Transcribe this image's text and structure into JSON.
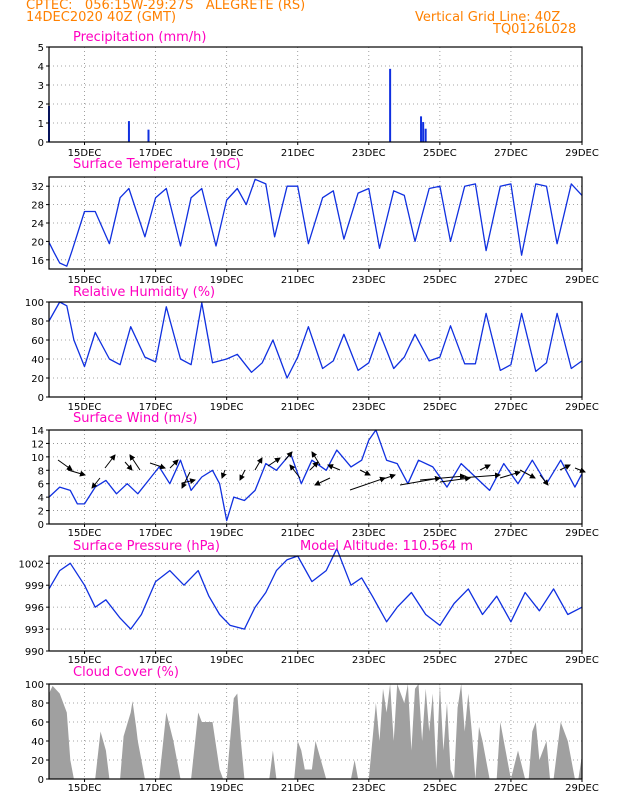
{
  "header": {
    "line1_left": "CPTEC:   056:15W-29:27S   ALEGRETE (RS)",
    "line2_left": "14DEC2020 40Z (GMT)",
    "line2_right": "Vertical Grid Line: 40Z",
    "line3_right": "TQ0126L028"
  },
  "colors": {
    "header": "#ff8000",
    "title": "#ff00c0",
    "series": "#1030e0",
    "cloud": "#a0a0a0",
    "arrow": "#000000"
  },
  "x_ticks": [
    "15DEC",
    "17DEC",
    "19DEC",
    "21DEC",
    "23DEC",
    "25DEC",
    "27DEC",
    "29DEC"
  ],
  "chart_data": [
    {
      "id": "precip",
      "type": "bar",
      "title": "Precipitation (mm/h)",
      "ylim": [
        0,
        5
      ],
      "yticks": [
        0,
        1,
        2,
        3,
        4,
        5
      ],
      "x": [
        14.0,
        16.25,
        16.8,
        23.6,
        24.47,
        24.53,
        24.6
      ],
      "values": [
        1.9,
        1.1,
        0.65,
        3.85,
        1.35,
        1.05,
        0.7
      ]
    },
    {
      "id": "temp",
      "type": "line",
      "title": "Surface Temperature (nC)",
      "ylim": [
        14,
        34
      ],
      "yticks": [
        16,
        20,
        24,
        28,
        32
      ],
      "x": [
        14.0,
        14.15,
        14.3,
        14.5,
        14.65,
        15.0,
        15.3,
        15.7,
        16.0,
        16.25,
        16.7,
        17.0,
        17.3,
        17.7,
        18.0,
        18.3,
        18.7,
        19.0,
        19.3,
        19.55,
        19.8,
        20.1,
        20.35,
        20.7,
        21.0,
        21.3,
        21.7,
        22.0,
        22.3,
        22.7,
        23.0,
        23.3,
        23.7,
        24.0,
        24.3,
        24.7,
        25.0,
        25.3,
        25.7,
        26.0,
        26.3,
        26.7,
        27.0,
        27.3,
        27.7,
        28.0,
        28.3,
        28.7,
        29.0
      ],
      "values": [
        19.8,
        17.5,
        15.3,
        14.6,
        18.0,
        26.5,
        26.5,
        19.5,
        29.5,
        31.5,
        21.0,
        29.5,
        31.5,
        19.0,
        29.5,
        31.5,
        19.0,
        29.0,
        31.5,
        28.0,
        33.5,
        32.5,
        21.0,
        32.0,
        32.0,
        19.5,
        29.5,
        31.0,
        20.5,
        30.5,
        31.5,
        18.5,
        31.0,
        30.0,
        20.0,
        31.5,
        32.0,
        20.0,
        32.0,
        32.5,
        18.0,
        32.0,
        32.5,
        17.0,
        32.5,
        32.0,
        19.5,
        32.5,
        30.0
      ]
    },
    {
      "id": "rh",
      "type": "line",
      "title": "Relative Humidity (%)",
      "ylim": [
        0,
        100
      ],
      "yticks": [
        0,
        20,
        40,
        60,
        80,
        100
      ],
      "x": [
        14.0,
        14.3,
        14.5,
        14.7,
        15.0,
        15.3,
        15.7,
        16.0,
        16.3,
        16.7,
        17.0,
        17.3,
        17.7,
        18.0,
        18.3,
        18.6,
        19.0,
        19.3,
        19.7,
        20.0,
        20.3,
        20.7,
        21.0,
        21.3,
        21.7,
        22.0,
        22.3,
        22.7,
        23.0,
        23.3,
        23.7,
        24.0,
        24.3,
        24.7,
        25.0,
        25.3,
        25.7,
        26.0,
        26.3,
        26.7,
        27.0,
        27.3,
        27.7,
        28.0,
        28.3,
        28.7,
        29.0
      ],
      "values": [
        80,
        100,
        96,
        60,
        32,
        68,
        40,
        34,
        74,
        42,
        37,
        95,
        40,
        34,
        99,
        36,
        40,
        45,
        26,
        36,
        60,
        20,
        42,
        74,
        30,
        38,
        66,
        28,
        36,
        68,
        30,
        42,
        66,
        38,
        42,
        75,
        35,
        35,
        88,
        28,
        34,
        88,
        27,
        36,
        88,
        30,
        38
      ]
    },
    {
      "id": "wind",
      "type": "line",
      "title": "Surface Wind (m/s)",
      "ylim": [
        0,
        14
      ],
      "yticks": [
        0,
        2,
        4,
        6,
        8,
        10,
        12,
        14
      ],
      "x": [
        14.0,
        14.3,
        14.6,
        14.8,
        15.0,
        15.3,
        15.6,
        15.9,
        16.2,
        16.5,
        16.8,
        17.1,
        17.4,
        17.7,
        18.0,
        18.3,
        18.6,
        18.8,
        19.0,
        19.2,
        19.5,
        19.8,
        20.1,
        20.4,
        20.8,
        21.1,
        21.4,
        21.8,
        22.1,
        22.5,
        22.8,
        23.0,
        23.2,
        23.5,
        23.8,
        24.1,
        24.4,
        24.8,
        25.2,
        25.6,
        26.0,
        26.4,
        26.8,
        27.2,
        27.6,
        28.0,
        28.4,
        28.8,
        29.0
      ],
      "values": [
        4.0,
        5.5,
        5.0,
        3.0,
        3.0,
        5.5,
        6.5,
        4.5,
        6.0,
        4.5,
        6.5,
        8.5,
        6.0,
        9.5,
        5.0,
        7.0,
        8.0,
        6.0,
        0.5,
        4.0,
        3.5,
        5.0,
        9.0,
        8.0,
        10.5,
        6.0,
        9.5,
        8.0,
        11.0,
        8.5,
        9.5,
        12.5,
        14.0,
        9.5,
        9.0,
        6.0,
        9.5,
        8.5,
        5.5,
        9.0,
        7.0,
        5.0,
        9.0,
        6.0,
        9.5,
        6.0,
        9.5,
        5.5,
        7.5
      ]
    },
    {
      "id": "pres",
      "type": "line",
      "title": "Surface Pressure (hPa)",
      "annotation": "Model Altitude: 110.564 m",
      "ylim": [
        990,
        1003
      ],
      "yticks": [
        990,
        993,
        996,
        999,
        1002
      ],
      "x": [
        14.0,
        14.3,
        14.6,
        15.0,
        15.3,
        15.6,
        16.0,
        16.3,
        16.6,
        17.0,
        17.4,
        17.8,
        18.2,
        18.5,
        18.8,
        19.1,
        19.5,
        19.8,
        20.1,
        20.4,
        20.7,
        21.0,
        21.4,
        21.8,
        22.1,
        22.5,
        22.8,
        23.1,
        23.5,
        23.8,
        24.2,
        24.6,
        25.0,
        25.4,
        25.8,
        26.2,
        26.6,
        27.0,
        27.4,
        27.8,
        28.2,
        28.6,
        29.0
      ],
      "values": [
        998.5,
        1001.0,
        1002.0,
        999.0,
        996.0,
        997.0,
        994.5,
        993.0,
        995.0,
        999.5,
        1001.0,
        999.0,
        1001.0,
        997.5,
        995.0,
        993.5,
        993.0,
        996.0,
        998.0,
        1001.0,
        1002.5,
        1003.0,
        999.5,
        1001.0,
        1004.0,
        999.0,
        1000.0,
        997.5,
        994.0,
        996.0,
        998.0,
        995.0,
        993.5,
        996.5,
        998.5,
        995.0,
        997.5,
        994.0,
        998.0,
        995.5,
        998.5,
        995.0,
        996.0
      ]
    },
    {
      "id": "cloud",
      "type": "area",
      "title": "Cloud Cover (%)",
      "ylim": [
        0,
        100
      ],
      "yticks": [
        0,
        20,
        40,
        60,
        80,
        100
      ],
      "x": [
        14.0,
        14.1,
        14.3,
        14.5,
        14.6,
        14.7,
        15.3,
        15.45,
        15.6,
        15.7,
        16.0,
        16.1,
        16.3,
        16.35,
        16.45,
        16.5,
        16.6,
        16.7,
        17.1,
        17.3,
        17.5,
        17.7,
        18.0,
        18.2,
        18.3,
        18.6,
        18.8,
        18.9,
        19.0,
        19.2,
        19.3,
        19.4,
        19.5,
        19.6,
        19.7,
        19.8,
        20.2,
        20.3,
        20.4,
        20.9,
        21.0,
        21.1,
        21.2,
        21.4,
        21.5,
        21.8,
        22.5,
        22.6,
        22.7,
        22.8,
        23.0,
        23.2,
        23.3,
        23.4,
        23.5,
        23.6,
        23.7,
        23.8,
        24.0,
        24.1,
        24.2,
        24.3,
        24.4,
        24.5,
        24.6,
        24.7,
        24.8,
        24.9,
        25.0,
        25.1,
        25.2,
        25.3,
        25.4,
        25.5,
        25.6,
        25.7,
        25.8,
        25.9,
        26.0,
        26.1,
        26.2,
        26.4,
        26.6,
        26.7,
        26.8,
        27.0,
        27.2,
        27.4,
        27.5,
        27.6,
        27.7,
        27.8,
        28.0,
        28.1,
        28.2,
        28.4,
        28.6,
        28.8,
        28.9,
        29.0
      ],
      "values": [
        90,
        98,
        90,
        70,
        20,
        0,
        0,
        50,
        30,
        0,
        0,
        45,
        70,
        82,
        55,
        40,
        20,
        0,
        0,
        70,
        40,
        0,
        0,
        70,
        60,
        60,
        10,
        0,
        0,
        85,
        90,
        40,
        0,
        0,
        0,
        0,
        0,
        30,
        0,
        0,
        40,
        30,
        10,
        10,
        40,
        0,
        0,
        20,
        0,
        0,
        0,
        80,
        40,
        95,
        70,
        100,
        40,
        100,
        80,
        100,
        30,
        95,
        100,
        40,
        95,
        50,
        90,
        10,
        100,
        30,
        80,
        10,
        0,
        75,
        100,
        50,
        90,
        50,
        0,
        55,
        40,
        0,
        0,
        60,
        40,
        0,
        30,
        0,
        0,
        50,
        60,
        20,
        40,
        0,
        0,
        60,
        40,
        0,
        0,
        25
      ]
    }
  ]
}
